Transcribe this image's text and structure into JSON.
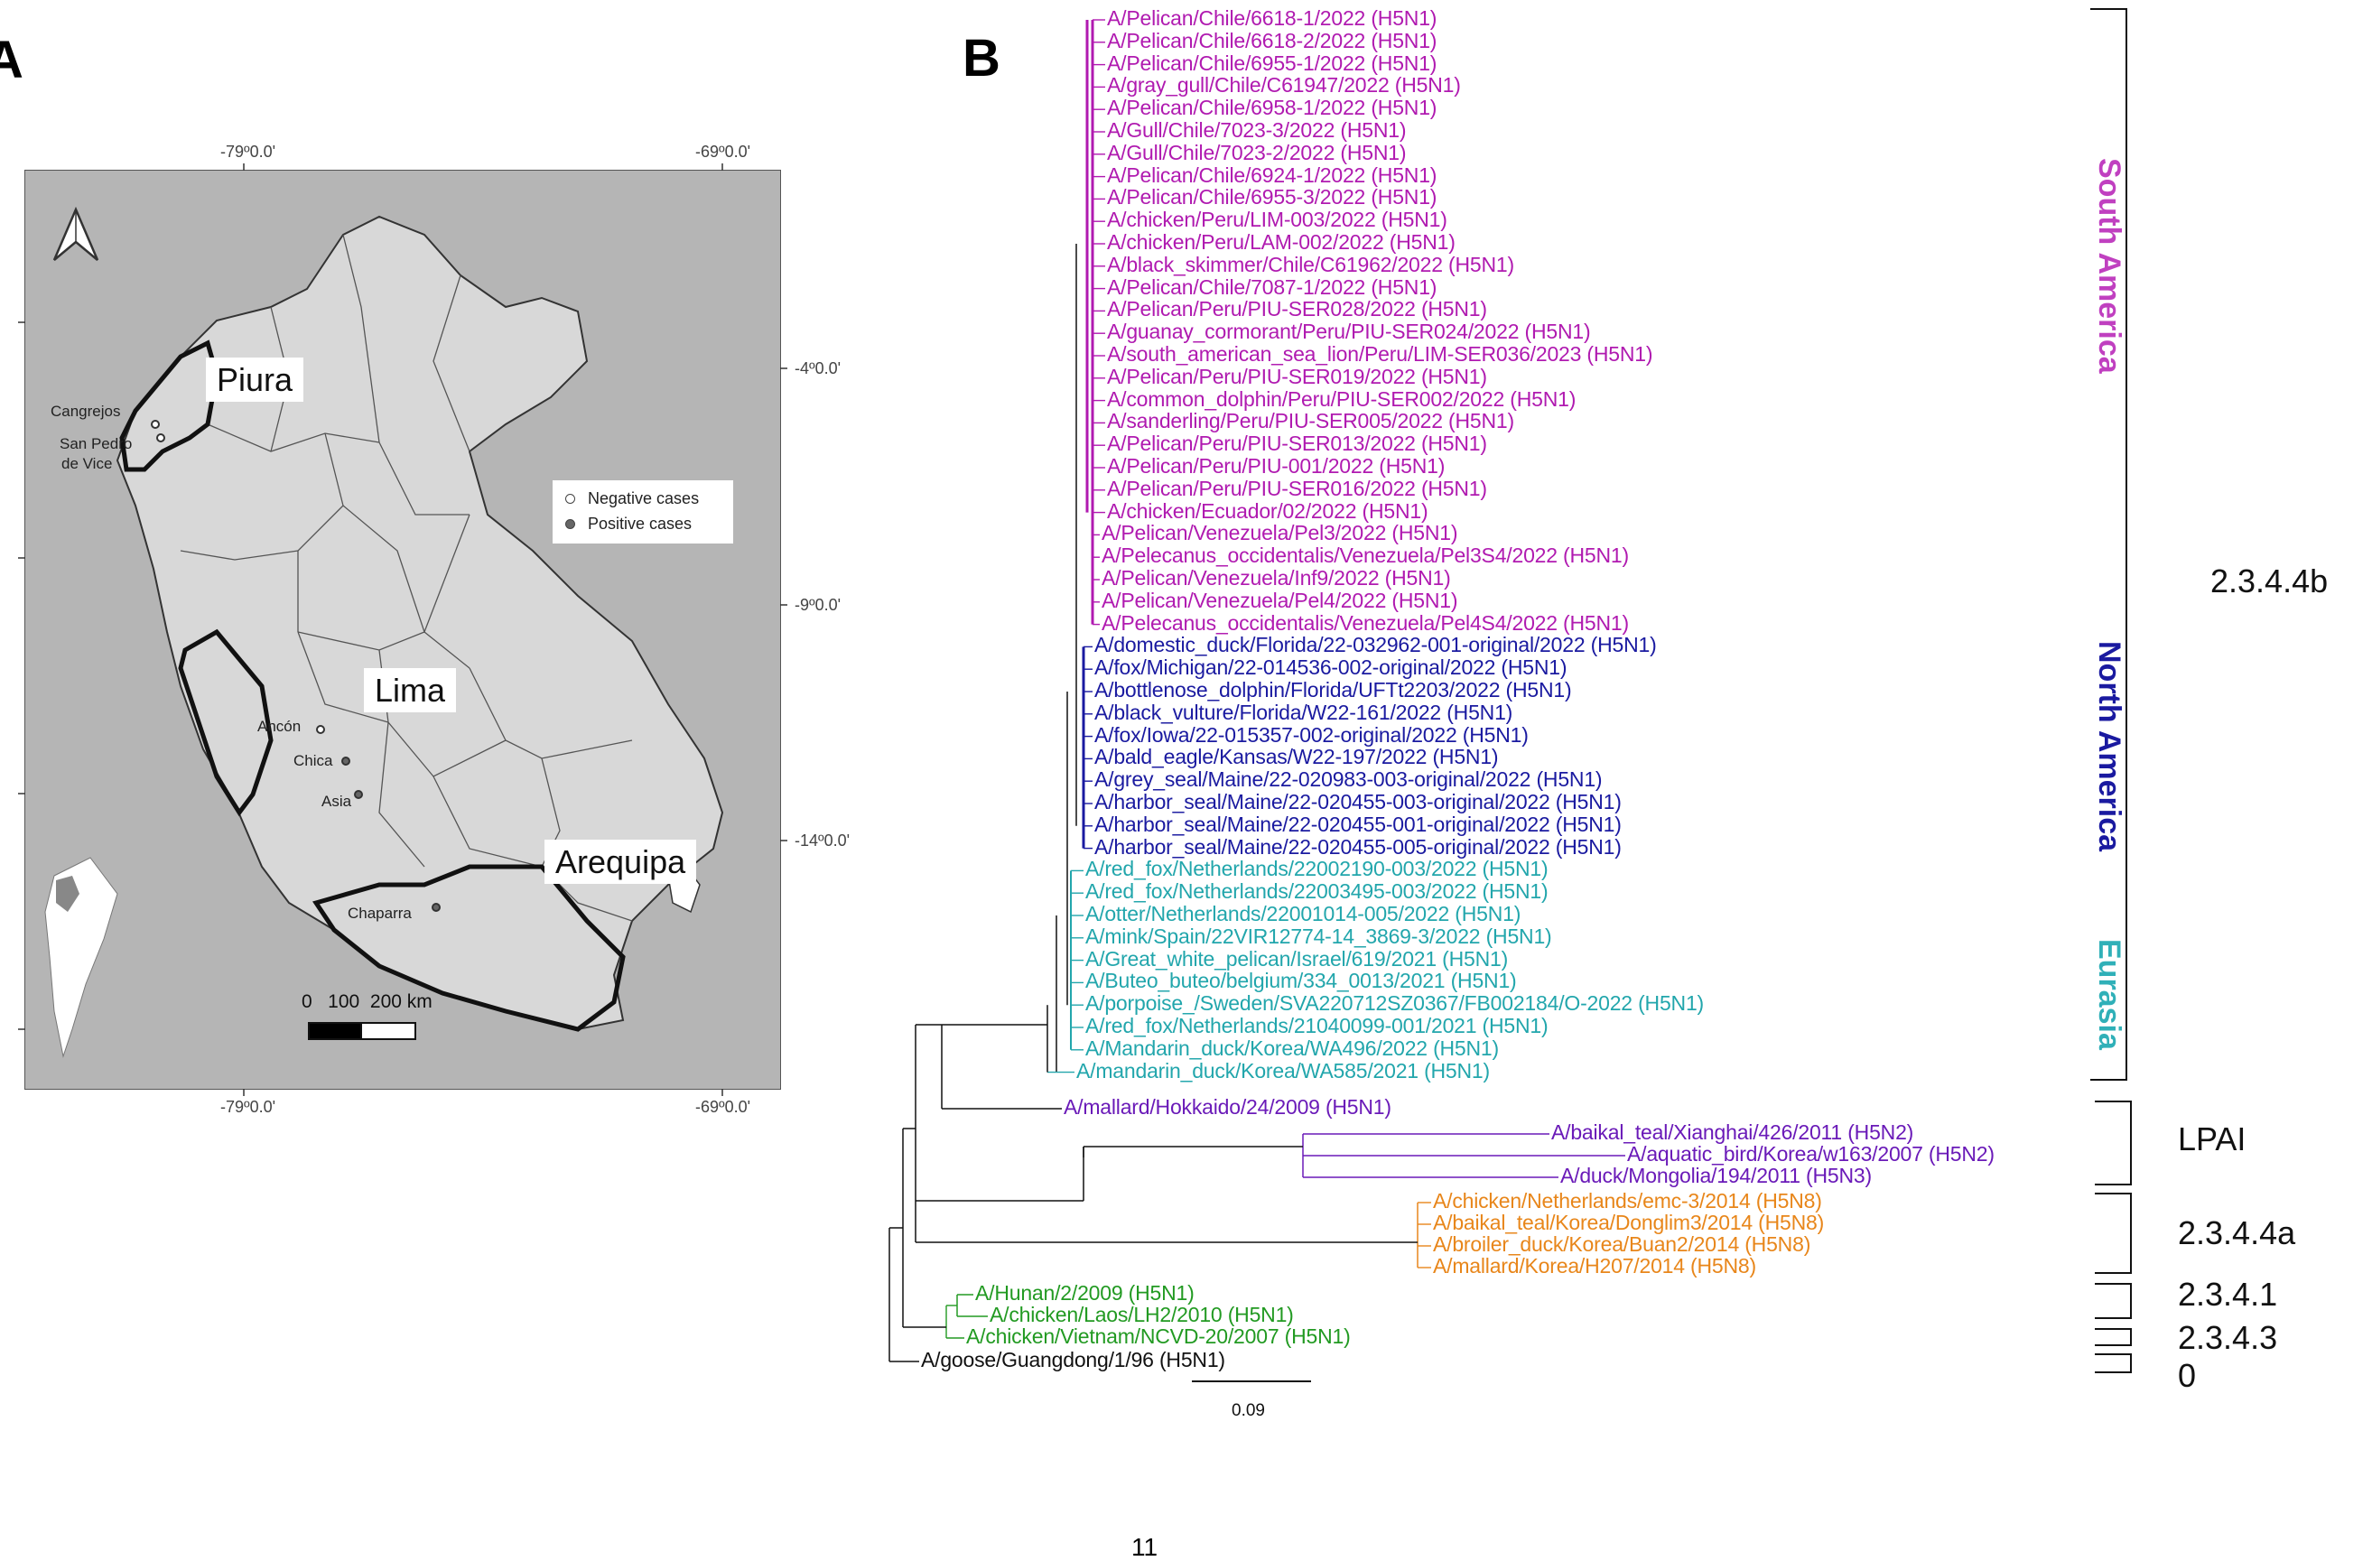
{
  "panels": {
    "a": "A",
    "b": "B"
  },
  "map": {
    "lon_labels": [
      "-79º0.0'",
      "-69º0.0'",
      "-79º0.0'",
      "-69º0.0'"
    ],
    "lat_labels": [
      "-4º0.0'",
      "-9º0.0'",
      "-14º0.0'"
    ],
    "regions": [
      "Piura",
      "Lima",
      "Arequipa"
    ],
    "sites": [
      "Cangrejos",
      "San Pedro",
      "de Vice",
      "Ancón",
      "Chica",
      "Asia",
      "Chaparra"
    ],
    "legend": {
      "negative": "Negative cases",
      "positive": "Positive cases"
    },
    "scale": {
      "label": "0   100  200 km"
    }
  },
  "tree": {
    "scale_bar": "0.09",
    "groups": [
      {
        "label": "South America",
        "color": "#c040c0"
      },
      {
        "label": "North America",
        "color": "#1a1aa0"
      },
      {
        "label": "Eurasia",
        "color": "#30b0b8"
      }
    ],
    "clades": [
      "2.3.4.4b",
      "LPAI",
      "2.3.4.4a",
      "2.3.4.1",
      "2.3.4.3",
      "0"
    ],
    "colors": {
      "sa": "#b01ab0",
      "na": "#1a1aa0",
      "eu": "#22a6ac",
      "lpai": "#6a1ab8",
      "h5n8": "#e8861a",
      "green": "#229a22",
      "black": "#111111"
    },
    "taxa": [
      "A/Pelican/Chile/6618-1/2022 (H5N1)",
      "A/Pelican/Chile/6618-2/2022 (H5N1)",
      "A/Pelican/Chile/6955-1/2022 (H5N1)",
      "A/gray_gull/Chile/C61947/2022 (H5N1)",
      "A/Pelican/Chile/6958-1/2022 (H5N1)",
      "A/Gull/Chile/7023-3/2022 (H5N1)",
      "A/Gull/Chile/7023-2/2022 (H5N1)",
      "A/Pelican/Chile/6924-1/2022 (H5N1)",
      "A/Pelican/Chile/6955-3/2022 (H5N1)",
      "A/chicken/Peru/LIM-003/2022 (H5N1)",
      "A/chicken/Peru/LAM-002/2022 (H5N1)",
      "A/black_skimmer/Chile/C61962/2022 (H5N1)",
      "A/Pelican/Chile/7087-1/2022 (H5N1)",
      "A/Pelican/Peru/PIU-SER028/2022 (H5N1)",
      "A/guanay_cormorant/Peru/PIU-SER024/2022 (H5N1)",
      "A/south_american_sea_lion/Peru/LIM-SER036/2023 (H5N1)",
      "A/Pelican/Peru/PIU-SER019/2022 (H5N1)",
      "A/common_dolphin/Peru/PIU-SER002/2022 (H5N1)",
      "A/sanderling/Peru/PIU-SER005/2022 (H5N1)",
      "A/Pelican/Peru/PIU-SER013/2022 (H5N1)",
      "A/Pelican/Peru/PIU-001/2022 (H5N1)",
      "A/Pelican/Peru/PIU-SER016/2022 (H5N1)",
      "A/chicken/Ecuador/02/2022 (H5N1)",
      "A/Pelican/Venezuela/Pel3/2022 (H5N1)",
      "A/Pelecanus_occidentalis/Venezuela/Pel3S4/2022 (H5N1)",
      "A/Pelican/Venezuela/Inf9/2022 (H5N1)",
      "A/Pelican/Venezuela/Pel4/2022 (H5N1)",
      "A/Pelecanus_occidentalis/Venezuela/Pel4S4/2022 (H5N1)",
      "A/domestic_duck/Florida/22-032962-001-original/2022 (H5N1)",
      "A/fox/Michigan/22-014536-002-original/2022 (H5N1)",
      "A/bottlenose_dolphin/Florida/UFTt2203/2022 (H5N1)",
      "A/black_vulture/Florida/W22-161/2022 (H5N1)",
      "A/fox/Iowa/22-015357-002-original/2022 (H5N1)",
      "A/bald_eagle/Kansas/W22-197/2022 (H5N1)",
      "A/grey_seal/Maine/22-020983-003-original/2022 (H5N1)",
      "A/harbor_seal/Maine/22-020455-003-original/2022 (H5N1)",
      "A/harbor_seal/Maine/22-020455-001-original/2022 (H5N1)",
      "A/harbor_seal/Maine/22-020455-005-original/2022 (H5N1)",
      "A/red_fox/Netherlands/22002190-003/2022 (H5N1)",
      "A/red_fox/Netherlands/22003495-003/2022 (H5N1)",
      "A/otter/Netherlands/22001014-005/2022 (H5N1)",
      "A/mink/Spain/22VIR12774-14_3869-3/2022 (H5N1)",
      "A/Great_white_pelican/Israel/619/2021 (H5N1)",
      "A/Buteo_buteo/belgium/334_0013/2021 (H5N1)",
      "A/porpoise_/Sweden/SVA220712SZ0367/FB002184/O-2022 (H5N1)",
      "A/red_fox/Netherlands/21040099-001/2021 (H5N1)",
      "A/Mandarin_duck/Korea/WA496/2022 (H5N1)",
      "A/mandarin_duck/Korea/WA585/2021 (H5N1)",
      "A/mallard/Hokkaido/24/2009 (H5N1)",
      "A/baikal_teal/Xianghai/426/2011 (H5N2)",
      "A/aquatic_bird/Korea/w163/2007 (H5N2)",
      "A/duck/Mongolia/194/2011 (H5N3)",
      "A/chicken/Netherlands/emc-3/2014 (H5N8)",
      "A/baikal_teal/Korea/Donglim3/2014 (H5N8)",
      "A/broiler_duck/Korea/Buan2/2014 (H5N8)",
      "A/mallard/Korea/H207/2014 (H5N8)",
      "A/Hunan/2/2009 (H5N1)",
      "A/chicken/Laos/LH2/2010 (H5N1)",
      "A/chicken/Vietnam/NCVD-20/2007 (H5N1)",
      "A/goose/Guangdong/1/96 (H5N1)"
    ]
  },
  "page_number": "11"
}
